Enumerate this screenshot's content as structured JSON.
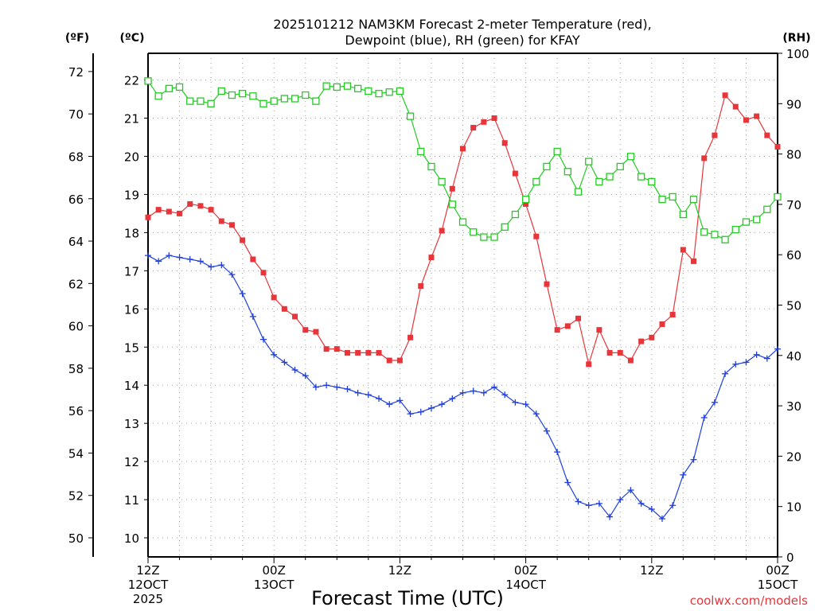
{
  "chart_data": {
    "type": "line",
    "title_line1": "2025101212 NAM3KM Forecast 2-meter Temperature (red),",
    "title_line2": "Dewpoint (blue), RH (green) for KFAY",
    "xlabel": "Forecast Time (UTC)",
    "watermark": "coolwx.com/models",
    "units": {
      "fahrenheit": "(ºF)",
      "celsius": "(ºC)",
      "rh": "(RH)"
    },
    "x_hours_range": [
      0,
      60
    ],
    "celsius_range": [
      9.5,
      22.7
    ],
    "rh_range": [
      0,
      100
    ],
    "x_ticks": [
      {
        "hour": 0,
        "line1": "12Z",
        "line2": "12OCT",
        "line3": "2025"
      },
      {
        "hour": 12,
        "line1": "00Z",
        "line2": "13OCT",
        "line3": ""
      },
      {
        "hour": 24,
        "line1": "12Z",
        "line2": "",
        "line3": ""
      },
      {
        "hour": 36,
        "line1": "00Z",
        "line2": "14OCT",
        "line3": ""
      },
      {
        "hour": 48,
        "line1": "12Z",
        "line2": "",
        "line3": ""
      },
      {
        "hour": 60,
        "line1": "00Z",
        "line2": "15OCT",
        "line3": ""
      }
    ],
    "celsius_ticks": [
      10,
      11,
      12,
      13,
      14,
      15,
      16,
      17,
      18,
      19,
      20,
      21,
      22
    ],
    "fahrenheit_ticks": [
      50,
      52,
      54,
      56,
      58,
      60,
      62,
      64,
      66,
      68,
      70,
      72
    ],
    "rh_ticks": [
      0,
      10,
      20,
      30,
      40,
      50,
      60,
      70,
      80,
      90,
      100
    ],
    "series": [
      {
        "name": "2-meter Temperature (°C)",
        "color": "#e8353a",
        "axis": "celsius",
        "marker": "filled-square",
        "values": [
          18.4,
          18.6,
          18.55,
          18.5,
          18.75,
          18.7,
          18.6,
          18.3,
          18.2,
          17.8,
          17.3,
          16.95,
          16.3,
          16.0,
          15.8,
          15.45,
          15.4,
          14.95,
          14.95,
          14.85,
          14.85,
          14.85,
          14.85,
          14.65,
          14.65,
          15.25,
          16.6,
          17.35,
          18.05,
          19.15,
          20.2,
          20.75,
          20.9,
          21.0,
          20.35,
          19.55,
          18.75,
          17.9,
          16.65,
          15.45,
          15.55,
          15.75,
          14.55,
          15.45,
          14.85,
          14.85,
          14.65,
          15.15,
          15.25,
          15.6,
          15.85,
          17.55,
          17.25,
          19.95,
          20.55,
          21.6,
          21.3,
          20.95,
          21.05,
          20.55,
          20.25
        ]
      },
      {
        "name": "Dewpoint (°C)",
        "color": "#1f3fdd",
        "axis": "celsius",
        "marker": "plus",
        "values": [
          17.4,
          17.25,
          17.4,
          17.35,
          17.3,
          17.25,
          17.1,
          17.15,
          16.9,
          16.4,
          15.8,
          15.2,
          14.8,
          14.6,
          14.4,
          14.25,
          13.95,
          14.0,
          13.95,
          13.9,
          13.8,
          13.75,
          13.65,
          13.5,
          13.6,
          13.25,
          13.3,
          13.4,
          13.5,
          13.65,
          13.8,
          13.85,
          13.8,
          13.95,
          13.75,
          13.55,
          13.5,
          13.25,
          12.8,
          12.25,
          11.45,
          10.95,
          10.85,
          10.9,
          10.55,
          11.0,
          11.25,
          10.9,
          10.75,
          10.5,
          10.85,
          11.65,
          12.05,
          13.15,
          13.55,
          14.3,
          14.55,
          14.6,
          14.8,
          14.7,
          14.95
        ]
      },
      {
        "name": "RH (%)",
        "color": "#22cc22",
        "axis": "rh",
        "marker": "open-square",
        "values": [
          94.5,
          91.5,
          93.0,
          93.3,
          90.5,
          90.5,
          90.0,
          92.5,
          91.7,
          92.0,
          91.5,
          90.0,
          90.5,
          91.0,
          91.0,
          91.7,
          90.5,
          93.5,
          93.3,
          93.5,
          93.0,
          92.5,
          92.0,
          92.3,
          92.5,
          87.5,
          80.5,
          77.5,
          74.5,
          70.0,
          66.5,
          64.5,
          63.5,
          63.5,
          65.5,
          68.0,
          71.0,
          74.5,
          77.5,
          80.5,
          76.5,
          72.5,
          78.5,
          74.5,
          75.5,
          77.5,
          79.5,
          75.5,
          74.5,
          71.0,
          71.5,
          68.0,
          71.0,
          64.5,
          64.0,
          63.0,
          65.0,
          66.5,
          67.0,
          69.0,
          71.5
        ]
      }
    ]
  }
}
